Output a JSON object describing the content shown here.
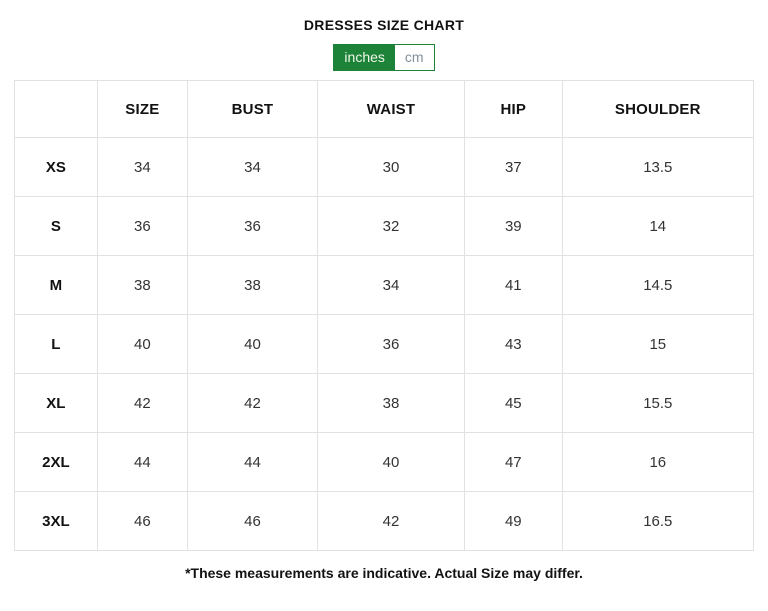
{
  "page": {
    "title": "DRESSES SIZE CHART",
    "footnote": "*These measurements are indicative. Actual Size may differ."
  },
  "unit_toggle": {
    "selected_unit": "inches",
    "options": [
      {
        "label": "inches",
        "selected": true
      },
      {
        "label": "cm",
        "selected": false
      }
    ],
    "accent_color": "#1d8338"
  },
  "chart_data": {
    "type": "table",
    "title": "DRESSES SIZE CHART",
    "unit": "inches",
    "columns": [
      "",
      "SIZE",
      "BUST",
      "WAIST",
      "HIP",
      "SHOULDER"
    ],
    "rows": [
      {
        "label": "XS",
        "values": [
          "34",
          "34",
          "30",
          "37",
          "13.5"
        ]
      },
      {
        "label": "S",
        "values": [
          "36",
          "36",
          "32",
          "39",
          "14"
        ]
      },
      {
        "label": "M",
        "values": [
          "38",
          "38",
          "34",
          "41",
          "14.5"
        ]
      },
      {
        "label": "L",
        "values": [
          "40",
          "40",
          "36",
          "43",
          "15"
        ]
      },
      {
        "label": "XL",
        "values": [
          "42",
          "42",
          "38",
          "45",
          "15.5"
        ]
      },
      {
        "label": "2XL",
        "values": [
          "44",
          "44",
          "40",
          "47",
          "16"
        ]
      },
      {
        "label": "3XL",
        "values": [
          "46",
          "46",
          "42",
          "49",
          "16.5"
        ]
      }
    ]
  },
  "colors": {
    "accent_green": "#1d8338",
    "border_gray": "#e2e2e2",
    "value_text": "#333333"
  }
}
